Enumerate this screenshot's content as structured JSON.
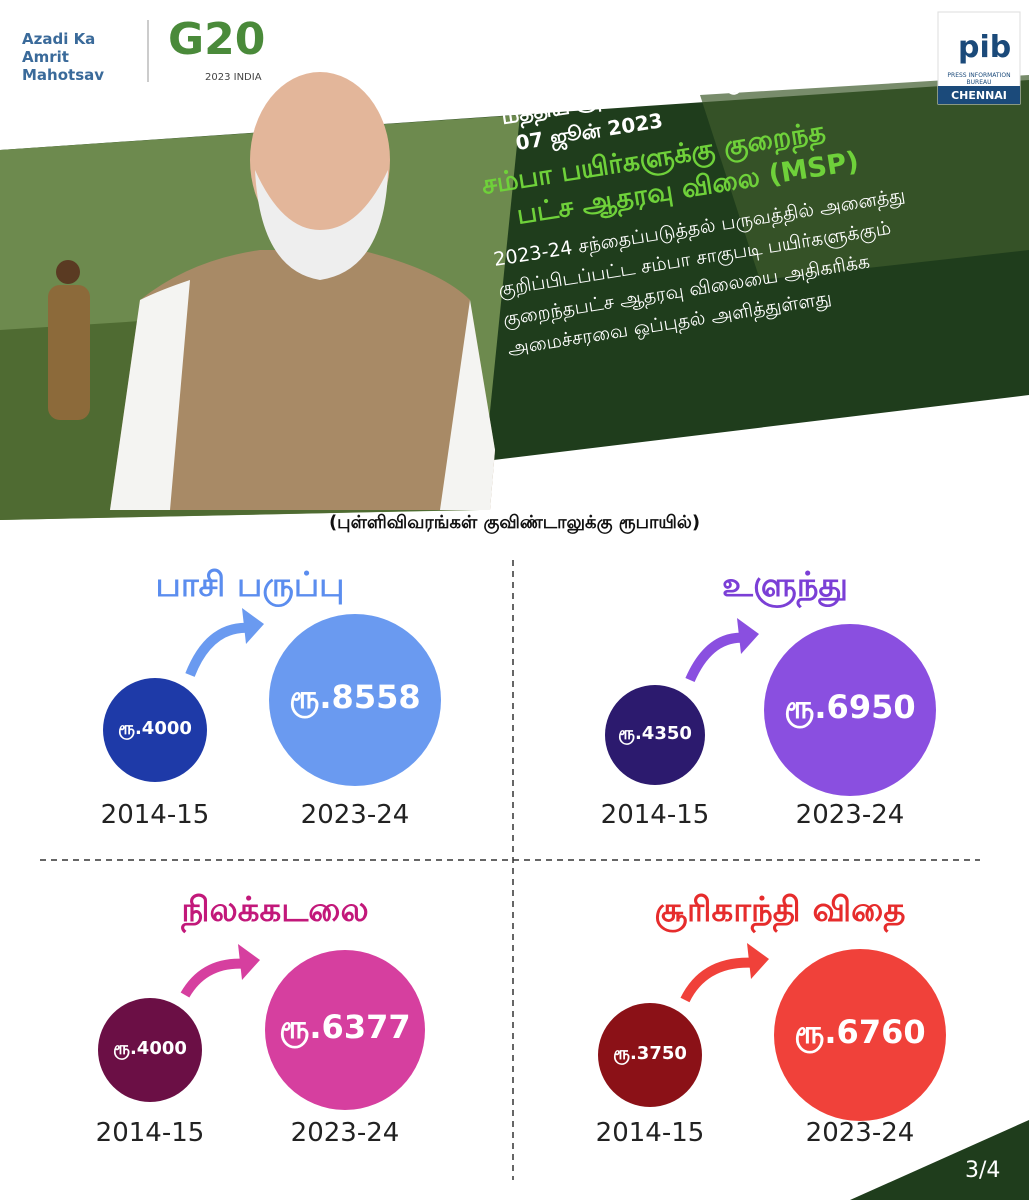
{
  "header": {
    "azadi": "Azadi Ka Amrit Mahotsav",
    "g20": "G20",
    "g20_sub": "2023 INDIA",
    "pib": "pib",
    "pib_sub": "PRESS INFORMATION BUREAU",
    "pib_city": "CHENNAI"
  },
  "banner": {
    "kicker": "மத்திய அமைச்சரவை முடிவுகள்",
    "date": "07 ஜூன் 2023",
    "headline": [
      "சம்பா பயிர்களுக்கு குறைந்த",
      "பட்ச ஆதரவு விலை (MSP)"
    ],
    "body": [
      "2023-24 சந்தைப்படுத்தல் பருவத்தில் அனைத்து",
      "குறிப்பிடப்பட்ட சம்பா சாகுபடி பயிர்களுக்கும்",
      "குறைந்தபட்ச ஆதரவு விலையை அதிகரிக்க",
      "அமைச்சரவை ஒப்புதல் அளித்துள்ளது"
    ]
  },
  "note": "(புள்ளிவிவரங்கள் குவிண்டாலுக்கு ரூபாயில்)",
  "panels": [
    {
      "title": "பாசி பருப்பு",
      "old": "ரூ.4000",
      "new": "ரூ.8558",
      "old_year": "2014-15",
      "new_year": "2023-24"
    },
    {
      "title": "உளுந்து",
      "old": "ரூ.4350",
      "new": "ரூ.6950",
      "old_year": "2014-15",
      "new_year": "2023-24"
    },
    {
      "title": "நிலக்கடலை",
      "old": "ரூ.4000",
      "new": "ரூ.6377",
      "old_year": "2014-15",
      "new_year": "2023-24"
    },
    {
      "title": "சூரிகாந்தி விதை",
      "old": "ரூ.3750",
      "new": "ரூ.6760",
      "old_year": "2014-15",
      "new_year": "2023-24"
    }
  ],
  "page_number": "3/4"
}
